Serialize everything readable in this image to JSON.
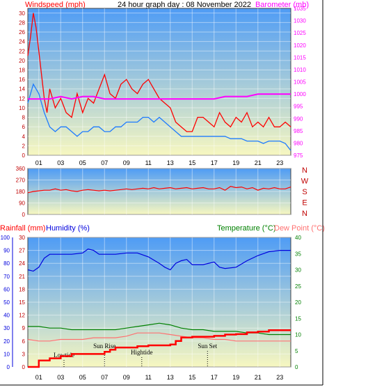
{
  "title": "24 hour graph day : 08 November 2022",
  "colors": {
    "windspeed": "#ff0000",
    "gust": "#ff0000",
    "avg_wind": "#1e7bff",
    "barometer": "#ff00ff",
    "direction": "#ff0000",
    "rainfall": "#ff0000",
    "humidity": "#0000dd",
    "temperature": "#008000",
    "dewpoint": "#ff7070",
    "sky_top": "#4f9cf5",
    "sky_bottom": "#f7f7c0"
  },
  "chart_data": [
    {
      "type": "line",
      "name": "wind-barometer",
      "ylabel_left": "Windspeed (mph)",
      "ylabel_right": "Barometer (mb)",
      "y_left_ticks": [
        "0",
        "2",
        "4",
        "6",
        "8",
        "10",
        "12",
        "14",
        "16",
        "18",
        "20",
        "22",
        "24",
        "26",
        "28",
        "30"
      ],
      "y_right_ticks": [
        "975",
        "980",
        "985",
        "990",
        "995",
        "1000",
        "1005",
        "1010",
        "1015",
        "1020",
        "1025",
        "1030",
        "1035"
      ],
      "x_ticks": [
        "01",
        "03",
        "05",
        "07",
        "09",
        "11",
        "13",
        "15",
        "17",
        "19",
        "21",
        "23"
      ],
      "ylim_left": [
        0,
        31
      ],
      "ylim_right": [
        975,
        1035
      ],
      "xlim": [
        0,
        24
      ],
      "series": [
        {
          "key": "gust",
          "x": [
            0,
            0.25,
            0.5,
            0.75,
            1,
            1.25,
            1.5,
            1.75,
            2,
            2.5,
            3,
            3.5,
            4,
            4.5,
            5,
            5.5,
            6,
            6.5,
            7,
            7.5,
            8,
            8.5,
            9,
            9.5,
            10,
            10.5,
            11,
            11.5,
            12,
            12.5,
            13,
            13.5,
            14,
            14.5,
            15,
            15.5,
            16,
            16.5,
            17,
            17.5,
            18,
            18.5,
            19,
            19.5,
            20,
            20.5,
            21,
            21.5,
            22,
            22.5,
            23,
            23.5,
            24
          ],
          "values": [
            21,
            25,
            30,
            27,
            22,
            17,
            12,
            9,
            14,
            10,
            12,
            9,
            8,
            13,
            9,
            12,
            11,
            14,
            17,
            13,
            12,
            15,
            16,
            14,
            13,
            15,
            16,
            14,
            12,
            11,
            10,
            7,
            6,
            5,
            5,
            8,
            8,
            7,
            6,
            9,
            7,
            6,
            8,
            7,
            9,
            6,
            7,
            6,
            8,
            6,
            6,
            7,
            6
          ]
        },
        {
          "key": "avg_wind",
          "x": [
            0,
            0.5,
            1,
            1.5,
            2,
            2.5,
            3,
            3.5,
            4,
            4.5,
            5,
            5.5,
            6,
            6.5,
            7,
            7.5,
            8,
            8.5,
            9,
            9.5,
            10,
            10.5,
            11,
            11.5,
            12,
            12.5,
            13,
            13.5,
            14,
            14.5,
            15,
            15.5,
            16,
            16.5,
            17,
            17.5,
            18,
            18.5,
            19,
            19.5,
            20,
            20.5,
            21,
            21.5,
            22,
            22.5,
            23,
            23.5,
            24
          ],
          "values": [
            11,
            15,
            13,
            9,
            6,
            5,
            6,
            6,
            5,
            4,
            5,
            5,
            6,
            6,
            5,
            5,
            6,
            6,
            7,
            7,
            7,
            8,
            8,
            7,
            8,
            7,
            6,
            5,
            4,
            4,
            4,
            4,
            4,
            4,
            4,
            4,
            4,
            3.5,
            3.5,
            3.5,
            3,
            3,
            3,
            2.5,
            3,
            3,
            3,
            2.5,
            1
          ]
        },
        {
          "key": "barometer",
          "x": [
            0,
            1,
            2,
            3,
            4,
            5,
            6,
            7,
            8,
            9,
            10,
            11,
            12,
            13,
            14,
            15,
            16,
            17,
            18,
            19,
            20,
            21,
            22,
            23,
            24
          ],
          "values": [
            998,
            998,
            998,
            999,
            998,
            999,
            999,
            998,
            998,
            998,
            998,
            998,
            998,
            998,
            998,
            998,
            998,
            998,
            999,
            999,
            999,
            1000,
            1000,
            1000,
            1000
          ]
        }
      ]
    },
    {
      "type": "line",
      "name": "wind-direction",
      "y_left_ticks": [
        "0",
        "90",
        "180",
        "270",
        "360"
      ],
      "compass_labels": [
        "N",
        "W",
        "S",
        "E",
        "N"
      ],
      "ylim_left": [
        0,
        360
      ],
      "xlim": [
        0,
        24
      ],
      "series": [
        {
          "key": "direction",
          "x": [
            0,
            0.5,
            1,
            1.5,
            2,
            2.5,
            3,
            3.5,
            4,
            4.5,
            5,
            5.5,
            6,
            6.5,
            7,
            7.5,
            8,
            8.5,
            9,
            9.5,
            10,
            10.5,
            11,
            11.5,
            12,
            12.5,
            13,
            13.5,
            14,
            14.5,
            15,
            15.5,
            16,
            16.5,
            17,
            17.5,
            18,
            18.5,
            19,
            19.5,
            20,
            20.5,
            21,
            21.5,
            22,
            22.5,
            23,
            23.5,
            24
          ],
          "values": [
            170,
            180,
            185,
            190,
            190,
            200,
            190,
            195,
            185,
            180,
            190,
            195,
            190,
            185,
            190,
            185,
            190,
            195,
            200,
            195,
            200,
            205,
            200,
            210,
            200,
            205,
            210,
            200,
            205,
            210,
            200,
            205,
            210,
            200,
            200,
            210,
            190,
            220,
            210,
            215,
            200,
            210,
            190,
            205,
            200,
            210,
            200,
            200,
            215
          ]
        }
      ]
    },
    {
      "type": "line",
      "name": "rain-humidity-temperature",
      "ylabel_rain": "Rainfall (mm)",
      "ylabel_humidity": "Humidity (%)",
      "ylabel_temperature": "Temperature (°C)",
      "ylabel_dewpoint": "Dew Point (°C)",
      "humidity_ticks": [
        "0",
        "10",
        "20",
        "30",
        "40",
        "50",
        "60",
        "70",
        "80",
        "90",
        "100"
      ],
      "rain_ticks": [
        "0",
        "3",
        "6",
        "9",
        "12",
        "15",
        "18",
        "21",
        "24",
        "27",
        "30"
      ],
      "temp_ticks": [
        "0",
        "5",
        "10",
        "15",
        "20",
        "25",
        "30",
        "35",
        "40"
      ],
      "x_ticks": [
        "01",
        "03",
        "05",
        "07",
        "09",
        "11",
        "13",
        "15",
        "17",
        "19",
        "21",
        "23"
      ],
      "ylim_humidity": [
        0,
        100
      ],
      "ylim_rain": [
        0,
        30
      ],
      "ylim_temp": [
        0,
        40
      ],
      "xlim": [
        0,
        24
      ],
      "annotations": [
        {
          "text": "Lowtide",
          "x": 3.3
        },
        {
          "text": "Sun Rise",
          "x": 7.0
        },
        {
          "text": "Hightide",
          "x": 10.4
        },
        {
          "text": "Sun Set",
          "x": 16.4
        }
      ],
      "series": [
        {
          "key": "humidity",
          "x": [
            0,
            0.5,
            1,
            1.5,
            2,
            3,
            4,
            5,
            5.5,
            6,
            6.5,
            7,
            8,
            9,
            10,
            11,
            12,
            12.5,
            13,
            13.5,
            14,
            14.5,
            15,
            16,
            17,
            17.5,
            18,
            19,
            20,
            21,
            22,
            23,
            24
          ],
          "values": [
            75,
            74,
            77,
            84,
            87,
            87,
            87,
            88,
            91,
            90,
            87,
            87,
            87,
            88,
            88,
            85,
            80,
            77,
            75,
            80,
            82,
            83,
            79,
            79,
            81,
            77,
            76,
            77,
            82,
            86,
            89,
            90,
            90
          ]
        },
        {
          "key": "temperature",
          "x": [
            0,
            1,
            2,
            3,
            4,
            5,
            6,
            7,
            8,
            9,
            10,
            11,
            12,
            13,
            14,
            15,
            16,
            17,
            18,
            19,
            20,
            21,
            22,
            23,
            24
          ],
          "values": [
            12.5,
            12.5,
            12,
            12,
            11.5,
            11.5,
            11.5,
            11.5,
            11.5,
            12,
            12.5,
            13,
            13.5,
            13,
            12,
            11.5,
            11.5,
            11,
            11,
            11,
            10.5,
            10.5,
            10,
            10,
            10
          ]
        },
        {
          "key": "dewpoint",
          "x": [
            0,
            1,
            2,
            3,
            4,
            5,
            6,
            7,
            8,
            9,
            10,
            11,
            12,
            13,
            14,
            15,
            16,
            17,
            18,
            19,
            20,
            21,
            22,
            23,
            24
          ],
          "values": [
            8.5,
            8,
            8,
            8.5,
            8.5,
            8.5,
            9,
            9,
            9,
            9.5,
            10.5,
            10.5,
            10.5,
            10,
            9.5,
            9,
            9,
            8.5,
            8.5,
            8,
            8,
            8,
            8,
            8,
            8
          ]
        },
        {
          "key": "rainfall",
          "x": [
            0,
            1,
            2,
            3,
            4,
            5,
            6,
            7,
            7.5,
            8,
            9,
            10,
            11,
            12,
            13,
            13.5,
            14,
            15,
            16,
            17,
            18,
            19,
            20,
            21,
            22,
            23,
            24
          ],
          "values": [
            0,
            1.5,
            2,
            2.5,
            3,
            3,
            3,
            3.5,
            4,
            4.5,
            4.5,
            4.8,
            5,
            5,
            5.2,
            6,
            6.8,
            7,
            7,
            7.2,
            7.5,
            7.6,
            8,
            8.2,
            8.5,
            8.5,
            8.5
          ]
        }
      ]
    }
  ]
}
